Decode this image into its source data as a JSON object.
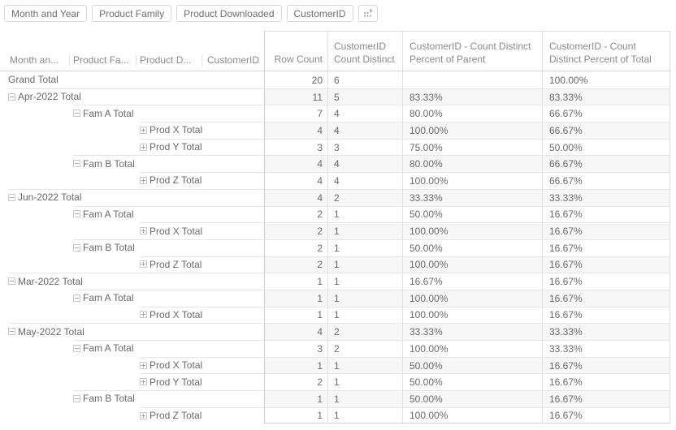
{
  "colors": {
    "text": "#696969",
    "header_text": "#8a8a8a",
    "grid_line": "#e1e1e1",
    "strong_line": "#cccccc",
    "stripe": "#f6f6f6",
    "chip_border": "#d7d7d7"
  },
  "toolbar": {
    "chips": [
      "Month and Year",
      "Product Family",
      "Product Downloaded",
      "CustomerID"
    ],
    "add_icon": "add-field-icon"
  },
  "table": {
    "left_headers": [
      "Month an...",
      "Product Fa...",
      "Product D...",
      "CustomerID"
    ],
    "value_headers": {
      "row_count": "Row Count",
      "count_distinct_l1": "CustomerID",
      "count_distinct_l2": "Count Distinct",
      "pct_parent_l1": "CustomerID - Count Distinct",
      "pct_parent_l2": "Percent of Parent",
      "pct_total_l1": "CustomerID - Count",
      "pct_total_l2": "Distinct Percent of Total"
    },
    "icons": {
      "collapse": "minus-box-icon",
      "expand": "plus-box-icon"
    },
    "rows": [
      {
        "label": "Grand Total",
        "level": 0,
        "icon": "none",
        "values": [
          "20",
          "6",
          "",
          "100.00%"
        ]
      },
      {
        "label": "Apr-2022 Total",
        "level": 0,
        "icon": "minus",
        "values": [
          "11",
          "5",
          "83.33%",
          "83.33%"
        ]
      },
      {
        "label": "Fam A Total",
        "level": 1,
        "icon": "minus",
        "values": [
          "7",
          "4",
          "80.00%",
          "66.67%"
        ]
      },
      {
        "label": "Prod X Total",
        "level": 2,
        "icon": "plus",
        "values": [
          "4",
          "4",
          "100.00%",
          "66.67%"
        ]
      },
      {
        "label": "Prod Y Total",
        "level": 2,
        "icon": "plus",
        "values": [
          "3",
          "3",
          "75.00%",
          "50.00%"
        ]
      },
      {
        "label": "Fam B Total",
        "level": 1,
        "icon": "minus",
        "values": [
          "4",
          "4",
          "80.00%",
          "66.67%"
        ]
      },
      {
        "label": "Prod Z Total",
        "level": 2,
        "icon": "plus",
        "values": [
          "4",
          "4",
          "100.00%",
          "66.67%"
        ]
      },
      {
        "label": "Jun-2022 Total",
        "level": 0,
        "icon": "minus",
        "values": [
          "4",
          "2",
          "33.33%",
          "33.33%"
        ]
      },
      {
        "label": "Fam A Total",
        "level": 1,
        "icon": "minus",
        "values": [
          "2",
          "1",
          "50.00%",
          "16.67%"
        ]
      },
      {
        "label": "Prod X Total",
        "level": 2,
        "icon": "plus",
        "values": [
          "2",
          "1",
          "100.00%",
          "16.67%"
        ]
      },
      {
        "label": "Fam B Total",
        "level": 1,
        "icon": "minus",
        "values": [
          "2",
          "1",
          "50.00%",
          "16.67%"
        ]
      },
      {
        "label": "Prod Z Total",
        "level": 2,
        "icon": "plus",
        "values": [
          "2",
          "1",
          "100.00%",
          "16.67%"
        ]
      },
      {
        "label": "Mar-2022 Total",
        "level": 0,
        "icon": "minus",
        "values": [
          "1",
          "1",
          "16.67%",
          "16.67%"
        ]
      },
      {
        "label": "Fam A Total",
        "level": 1,
        "icon": "minus",
        "values": [
          "1",
          "1",
          "100.00%",
          "16.67%"
        ]
      },
      {
        "label": "Prod X Total",
        "level": 2,
        "icon": "plus",
        "values": [
          "1",
          "1",
          "100.00%",
          "16.67%"
        ]
      },
      {
        "label": "May-2022 Total",
        "level": 0,
        "icon": "minus",
        "values": [
          "4",
          "2",
          "33.33%",
          "33.33%"
        ]
      },
      {
        "label": "Fam A Total",
        "level": 1,
        "icon": "minus",
        "values": [
          "3",
          "2",
          "100.00%",
          "33.33%"
        ]
      },
      {
        "label": "Prod X Total",
        "level": 2,
        "icon": "plus",
        "values": [
          "1",
          "1",
          "50.00%",
          "16.67%"
        ]
      },
      {
        "label": "Prod Y Total",
        "level": 2,
        "icon": "plus",
        "values": [
          "2",
          "1",
          "50.00%",
          "16.67%"
        ]
      },
      {
        "label": "Fam B Total",
        "level": 1,
        "icon": "minus",
        "values": [
          "1",
          "1",
          "50.00%",
          "16.67%"
        ]
      },
      {
        "label": "Prod Z Total",
        "level": 2,
        "icon": "plus",
        "values": [
          "1",
          "1",
          "100.00%",
          "16.67%"
        ]
      }
    ]
  }
}
